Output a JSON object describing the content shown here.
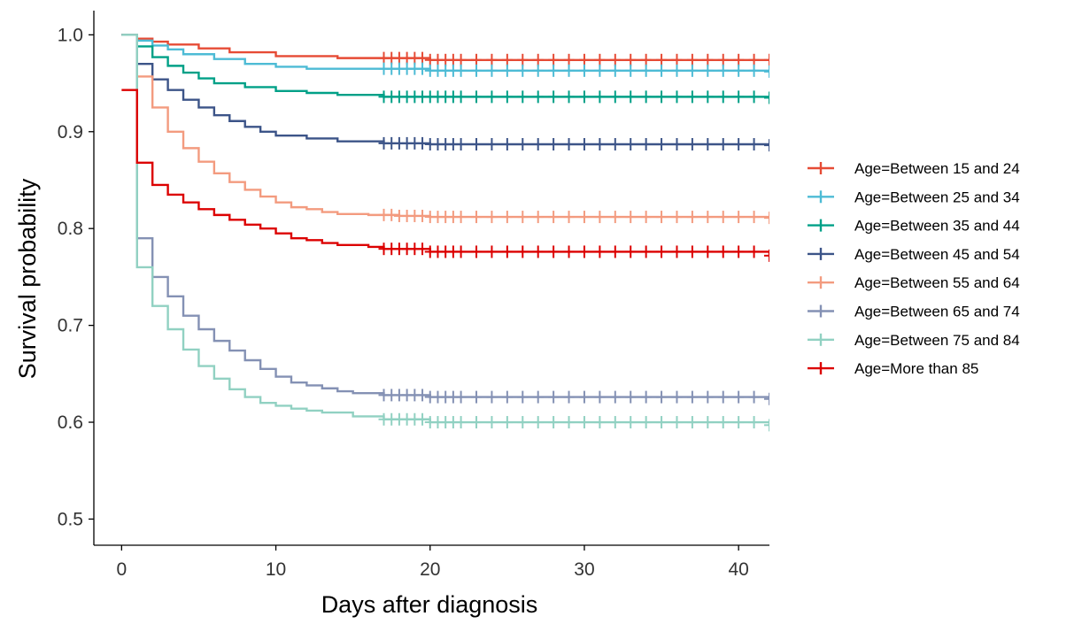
{
  "chart_data": {
    "type": "line",
    "title": "",
    "xlabel": "Days after diagnosis",
    "ylabel": "Survival probability",
    "xlim": [
      -1.8,
      42
    ],
    "ylim": [
      0.473,
      1.025
    ],
    "xticks": [
      0,
      10,
      20,
      30,
      40
    ],
    "yticks": [
      0.5,
      0.6,
      0.7,
      0.8,
      0.9,
      1.0
    ],
    "xtick_labels": [
      "0",
      "10",
      "20",
      "30",
      "40"
    ],
    "ytick_labels": [
      "0.5",
      "0.6",
      "0.7",
      "0.8",
      "0.9",
      "1.0"
    ],
    "grid": false,
    "legend_position": "right",
    "censor_marks": {
      "x": [
        17,
        17.5,
        18,
        18.5,
        19,
        19.5,
        20,
        20.5,
        21,
        21.5,
        22,
        23,
        24,
        25,
        26,
        27,
        28,
        29,
        30,
        31,
        32,
        33,
        34,
        35,
        36,
        37,
        38,
        39,
        40,
        41,
        42
      ]
    },
    "series": [
      {
        "name": "Age=Between 15 and 24",
        "color": "#E64B35",
        "x": [
          0,
          1,
          2,
          3,
          5,
          7,
          10,
          14,
          20,
          42
        ],
        "y": [
          1.0,
          0.996,
          0.993,
          0.99,
          0.986,
          0.982,
          0.978,
          0.976,
          0.974,
          0.974
        ]
      },
      {
        "name": "Age=Between 25 and 34",
        "color": "#4DBBD5",
        "x": [
          0,
          1,
          2,
          3,
          4,
          6,
          8,
          10,
          12,
          20,
          42
        ],
        "y": [
          1.0,
          0.994,
          0.989,
          0.985,
          0.98,
          0.975,
          0.97,
          0.967,
          0.965,
          0.963,
          0.962
        ]
      },
      {
        "name": "Age=Between 35 and 44",
        "color": "#00A087",
        "x": [
          0,
          1,
          2,
          3,
          4,
          5,
          6,
          8,
          10,
          12,
          14,
          17,
          42
        ],
        "y": [
          1.0,
          0.988,
          0.977,
          0.968,
          0.961,
          0.955,
          0.95,
          0.946,
          0.942,
          0.94,
          0.938,
          0.936,
          0.935
        ]
      },
      {
        "name": "Age=Between 45 and 54",
        "color": "#3C5488",
        "x": [
          0,
          1,
          2,
          3,
          4,
          5,
          6,
          7,
          8,
          9,
          10,
          12,
          14,
          17,
          20,
          42
        ],
        "y": [
          1.0,
          0.97,
          0.954,
          0.943,
          0.933,
          0.925,
          0.917,
          0.911,
          0.905,
          0.9,
          0.896,
          0.893,
          0.89,
          0.888,
          0.887,
          0.886
        ]
      },
      {
        "name": "Age=Between 55 and 64",
        "color": "#F39B7F",
        "x": [
          0,
          1,
          2,
          3,
          4,
          5,
          6,
          7,
          8,
          9,
          10,
          11,
          12,
          13,
          14,
          16,
          18,
          20,
          42
        ],
        "y": [
          1.0,
          0.957,
          0.925,
          0.9,
          0.883,
          0.869,
          0.857,
          0.848,
          0.84,
          0.833,
          0.827,
          0.822,
          0.82,
          0.817,
          0.815,
          0.814,
          0.813,
          0.812,
          0.811
        ]
      },
      {
        "name": "Age=Between 65 and 74",
        "color": "#8491B4",
        "x": [
          0,
          1,
          2,
          3,
          4,
          5,
          6,
          7,
          8,
          9,
          10,
          11,
          12,
          13,
          14,
          15,
          17,
          20,
          42
        ],
        "y": [
          1.0,
          0.79,
          0.75,
          0.73,
          0.71,
          0.696,
          0.684,
          0.674,
          0.664,
          0.655,
          0.647,
          0.641,
          0.638,
          0.635,
          0.632,
          0.63,
          0.628,
          0.626,
          0.624
        ]
      },
      {
        "name": "Age=Between 75 and 84",
        "color": "#91D1C2",
        "x": [
          0,
          1,
          2,
          3,
          4,
          5,
          6,
          7,
          8,
          9,
          10,
          11,
          12,
          13,
          15,
          17,
          20,
          42
        ],
        "y": [
          1.0,
          0.76,
          0.72,
          0.696,
          0.675,
          0.658,
          0.645,
          0.634,
          0.626,
          0.62,
          0.617,
          0.614,
          0.612,
          0.61,
          0.606,
          0.603,
          0.6,
          0.597
        ]
      },
      {
        "name": "Age=More than 85",
        "color": "#DC0000",
        "x": [
          0,
          1,
          2,
          3,
          4,
          5,
          6,
          7,
          8,
          9,
          10,
          11,
          12,
          13,
          14,
          16,
          17,
          20,
          42
        ],
        "y": [
          0.943,
          0.868,
          0.845,
          0.835,
          0.827,
          0.82,
          0.814,
          0.809,
          0.804,
          0.8,
          0.795,
          0.79,
          0.788,
          0.785,
          0.783,
          0.781,
          0.779,
          0.776,
          0.772
        ]
      }
    ]
  }
}
